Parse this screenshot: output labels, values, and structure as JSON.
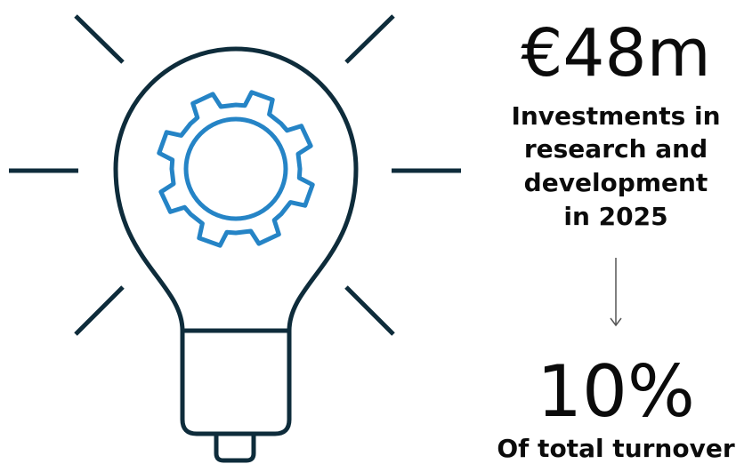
{
  "stats": [
    {
      "value": "€48m",
      "description": [
        "Investments in",
        "research and",
        "development",
        "in 2025"
      ]
    },
    {
      "value": "10%",
      "description": [
        "Of total turnover"
      ]
    }
  ]
}
